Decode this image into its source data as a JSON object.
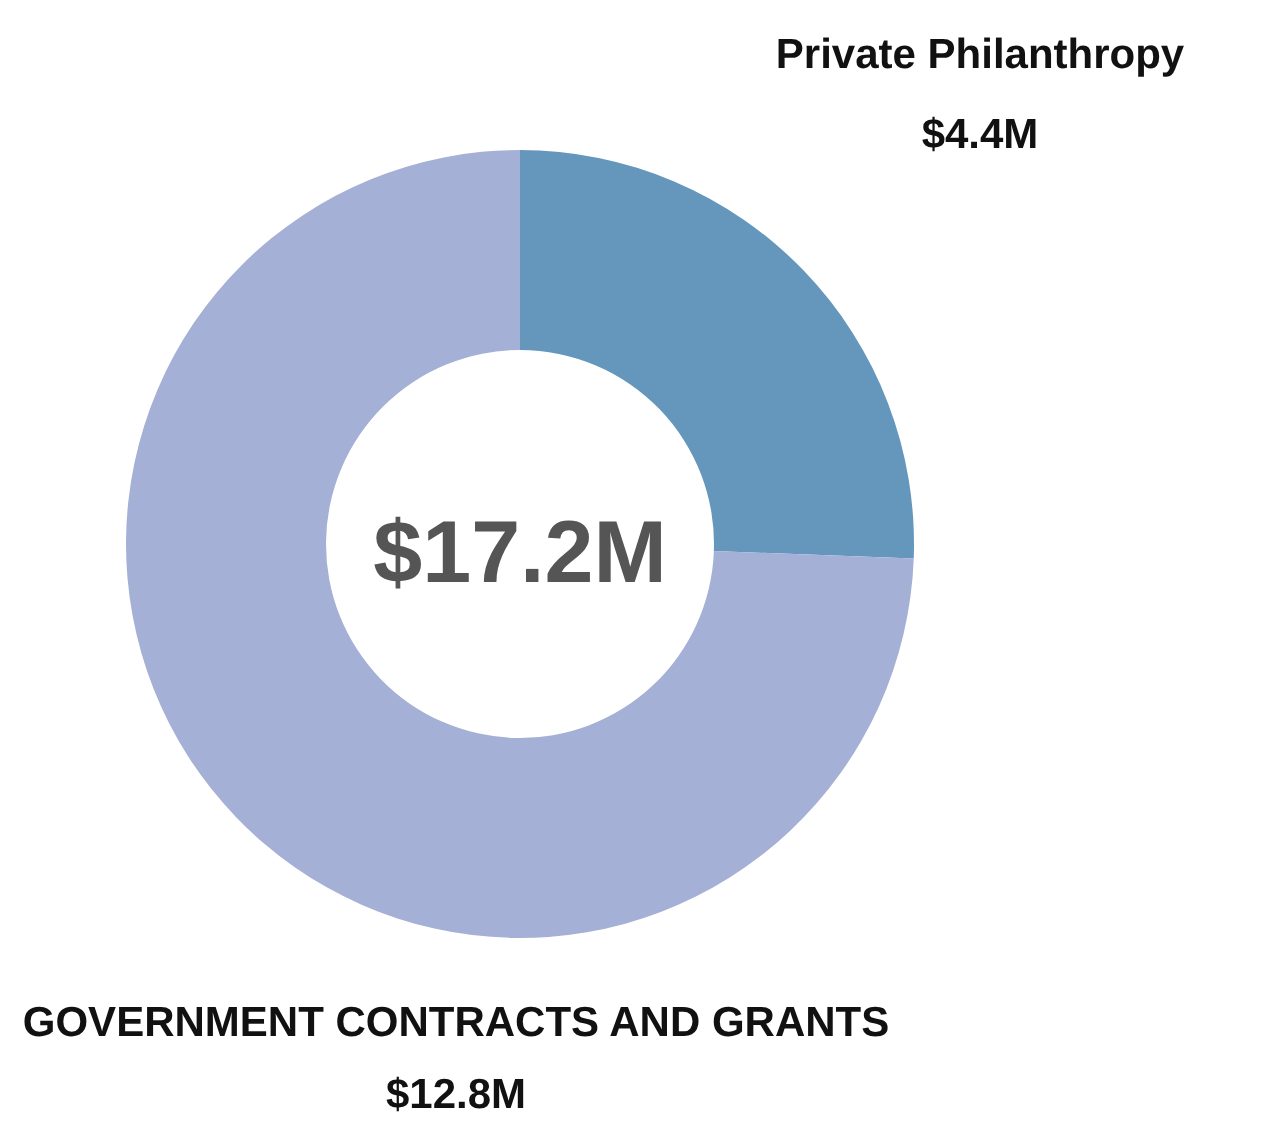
{
  "chart_data": {
    "type": "donut",
    "categories": [
      "Private Philanthropy",
      "GOVERNMENT CONTRACTS AND GRANTS"
    ],
    "values": [
      4.4,
      12.8
    ],
    "colors": [
      "#6497bb",
      "#a5b0d6"
    ],
    "value_labels": [
      "$4.4M",
      "$12.8M"
    ],
    "annotations": [
      "$17.2M"
    ]
  }
}
